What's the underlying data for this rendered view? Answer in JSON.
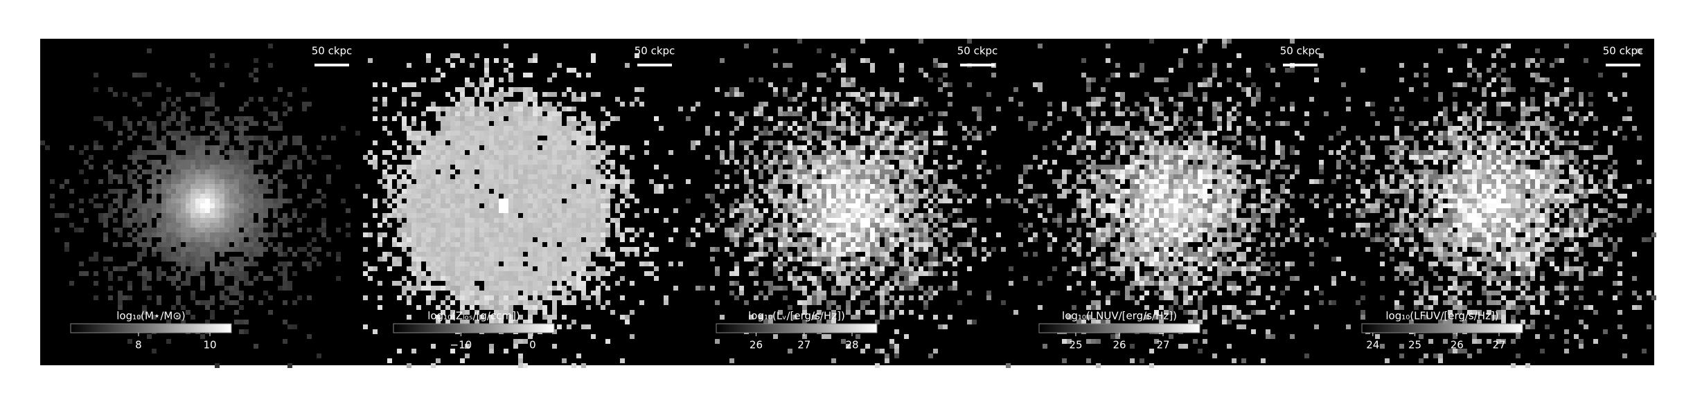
{
  "panels": [
    {
      "scale_label": "50 ckpc",
      "colorbar": {
        "label": "log₁₀(M⋆/M⊙)",
        "clim": [
          6.1,
          10.6
        ],
        "ticks": [
          8,
          10
        ]
      }
    },
    {
      "scale_label": "50 ckpc",
      "colorbar": {
        "label": "log₁₀(Zₗₒₛ/[g/ccm])",
        "clim": [
          -19.4,
          3.0
        ],
        "ticks": [
          {
            "value": -10,
            "label": "−10"
          },
          0
        ]
      }
    },
    {
      "scale_label": "50 ckpc",
      "colorbar": {
        "label": "log₁₀(Lᵥ/[erg/s/Hz])",
        "clim": [
          25.17,
          28.52
        ],
        "ticks": [
          26,
          27,
          28
        ]
      }
    },
    {
      "scale_label": "50 ckpc",
      "colorbar": {
        "label": "log₁₀(LNUV/[erg/s/Hz])",
        "clim": [
          24.16,
          27.84
        ],
        "ticks": [
          25,
          26,
          27
        ]
      }
    },
    {
      "scale_label": "50 ckpc",
      "colorbar": {
        "label": "log₁₀(LFUV/[erg/s/Hz])",
        "clim": [
          23.74,
          27.56
        ],
        "ticks": [
          24,
          25,
          26,
          27
        ]
      }
    }
  ]
}
